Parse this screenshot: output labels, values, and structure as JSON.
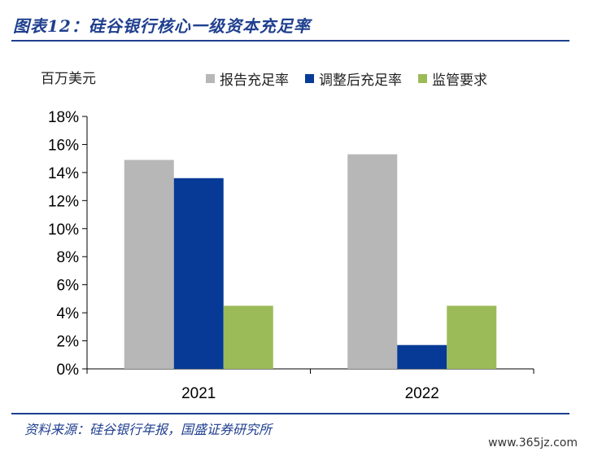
{
  "header": {
    "title": "图表12：硅谷银行核心一级资本充足率"
  },
  "unit_label": "百万美元",
  "source": "资料来源：硅谷银行年报，国盛证券研究所",
  "watermark": "www.365jz.com",
  "chart_data": {
    "type": "bar",
    "title": "图表12：硅谷银行核心一级资本充足率",
    "categories": [
      "2021",
      "2022"
    ],
    "series": [
      {
        "name": "报告充足率",
        "color": "#b7b7b7",
        "values": [
          14.9,
          15.3
        ]
      },
      {
        "name": "调整后充足率",
        "color": "#063a96",
        "values": [
          13.6,
          1.7
        ]
      },
      {
        "name": "监管要求",
        "color": "#9bbb59",
        "values": [
          4.5,
          4.5
        ]
      }
    ],
    "yticks": [
      "0%",
      "2%",
      "4%",
      "6%",
      "8%",
      "10%",
      "12%",
      "14%",
      "16%",
      "18%"
    ],
    "ylim": [
      0,
      18
    ],
    "legend_position": "top"
  }
}
